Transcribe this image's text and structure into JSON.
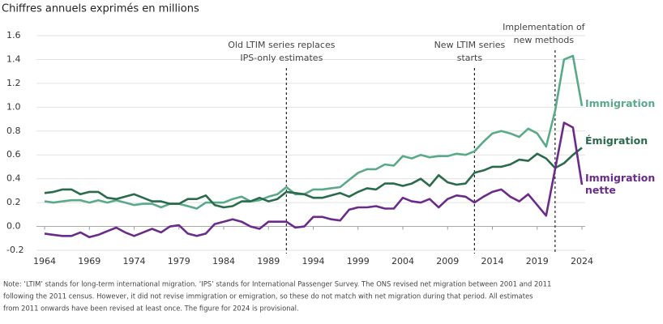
{
  "chart_data": {
    "type": "line",
    "title": "Chiffres annuels exprimés en millions",
    "x": [
      1964,
      1965,
      1966,
      1967,
      1968,
      1969,
      1970,
      1971,
      1972,
      1973,
      1974,
      1975,
      1976,
      1977,
      1978,
      1979,
      1980,
      1981,
      1982,
      1983,
      1984,
      1985,
      1986,
      1987,
      1988,
      1989,
      1990,
      1991,
      1992,
      1993,
      1994,
      1995,
      1996,
      1997,
      1998,
      1999,
      2000,
      2001,
      2002,
      2003,
      2004,
      2005,
      2006,
      2007,
      2008,
      2009,
      2010,
      2011,
      2012,
      2013,
      2014,
      2015,
      2016,
      2017,
      2018,
      2019,
      2020,
      2021,
      2022,
      2023,
      2024
    ],
    "series": [
      {
        "name": "Immigration",
        "color": "#5aaa8a",
        "values": [
          0.21,
          0.2,
          0.21,
          0.22,
          0.22,
          0.2,
          0.22,
          0.2,
          0.22,
          0.2,
          0.18,
          0.19,
          0.19,
          0.16,
          0.19,
          0.19,
          0.17,
          0.15,
          0.2,
          0.2,
          0.2,
          0.23,
          0.25,
          0.21,
          0.22,
          0.25,
          0.27,
          0.33,
          0.27,
          0.27,
          0.31,
          0.31,
          0.32,
          0.33,
          0.39,
          0.45,
          0.48,
          0.48,
          0.52,
          0.51,
          0.59,
          0.57,
          0.6,
          0.58,
          0.59,
          0.59,
          0.61,
          0.6,
          0.63,
          0.71,
          0.78,
          0.8,
          0.78,
          0.75,
          0.82,
          0.78,
          0.67,
          0.97,
          1.4,
          1.43,
          1.01
        ]
      },
      {
        "name": "Émigration",
        "color": "#2a6b4c",
        "values": [
          0.28,
          0.29,
          0.31,
          0.31,
          0.27,
          0.29,
          0.29,
          0.24,
          0.23,
          0.25,
          0.27,
          0.24,
          0.21,
          0.21,
          0.19,
          0.19,
          0.23,
          0.23,
          0.26,
          0.18,
          0.16,
          0.17,
          0.21,
          0.21,
          0.24,
          0.21,
          0.23,
          0.29,
          0.28,
          0.27,
          0.24,
          0.24,
          0.26,
          0.28,
          0.25,
          0.29,
          0.32,
          0.31,
          0.36,
          0.36,
          0.34,
          0.36,
          0.4,
          0.34,
          0.43,
          0.37,
          0.35,
          0.36,
          0.45,
          0.47,
          0.5,
          0.5,
          0.52,
          0.56,
          0.55,
          0.61,
          0.57,
          0.49,
          0.53,
          0.6,
          0.66
        ]
      },
      {
        "name": "Immigration nette",
        "color": "#6b2b8a",
        "values": [
          -0.06,
          -0.07,
          -0.08,
          -0.08,
          -0.05,
          -0.09,
          -0.07,
          -0.04,
          -0.01,
          -0.05,
          -0.08,
          -0.05,
          -0.02,
          -0.05,
          0.0,
          0.01,
          -0.06,
          -0.08,
          -0.06,
          0.02,
          0.04,
          0.06,
          0.04,
          0.0,
          -0.02,
          0.04,
          0.04,
          0.04,
          -0.01,
          0.0,
          0.08,
          0.08,
          0.06,
          0.05,
          0.14,
          0.16,
          0.16,
          0.17,
          0.15,
          0.15,
          0.24,
          0.21,
          0.2,
          0.23,
          0.16,
          0.23,
          0.26,
          0.25,
          0.2,
          0.25,
          0.29,
          0.31,
          0.25,
          0.21,
          0.27,
          0.18,
          0.09,
          0.48,
          0.87,
          0.83,
          0.35
        ]
      }
    ],
    "xlim": [
      1964,
      2024
    ],
    "xticks": [
      1964,
      1969,
      1974,
      1979,
      1984,
      1989,
      1994,
      1999,
      2004,
      2009,
      2014,
      2019,
      2024
    ],
    "ylim": [
      -0.2,
      1.6
    ],
    "yticks": [
      -0.2,
      0.2,
      0.4,
      0.6,
      0.8,
      {
        "value": 0,
        "label": "0.0"
      },
      {
        "value": 1,
        "label": "1.0"
      },
      1.2,
      1.4,
      1.6
    ],
    "grid": true,
    "annotations": [
      {
        "x": 1991,
        "text": [
          "Old LTIM series replaces",
          "IPS-only estimates"
        ]
      },
      {
        "x": 2012,
        "text": [
          "New LTIM series",
          "starts"
        ]
      },
      {
        "x": 2021,
        "text": [
          "Implementation of",
          "new methods"
        ]
      }
    ],
    "note": [
      "Note: ‘LTIM’ stands for long-term international migration. ‘IPS’ stands for International Passenger Survey. The ONS revised net migration between 2001 and 2011",
      "following the 2011 census. However, it did not revise immigration or emigration, so these do not match with net migration during that period. All estimates",
      "from 2011 onwards have been revised at least once. The figure for 2024 is provisional."
    ]
  }
}
